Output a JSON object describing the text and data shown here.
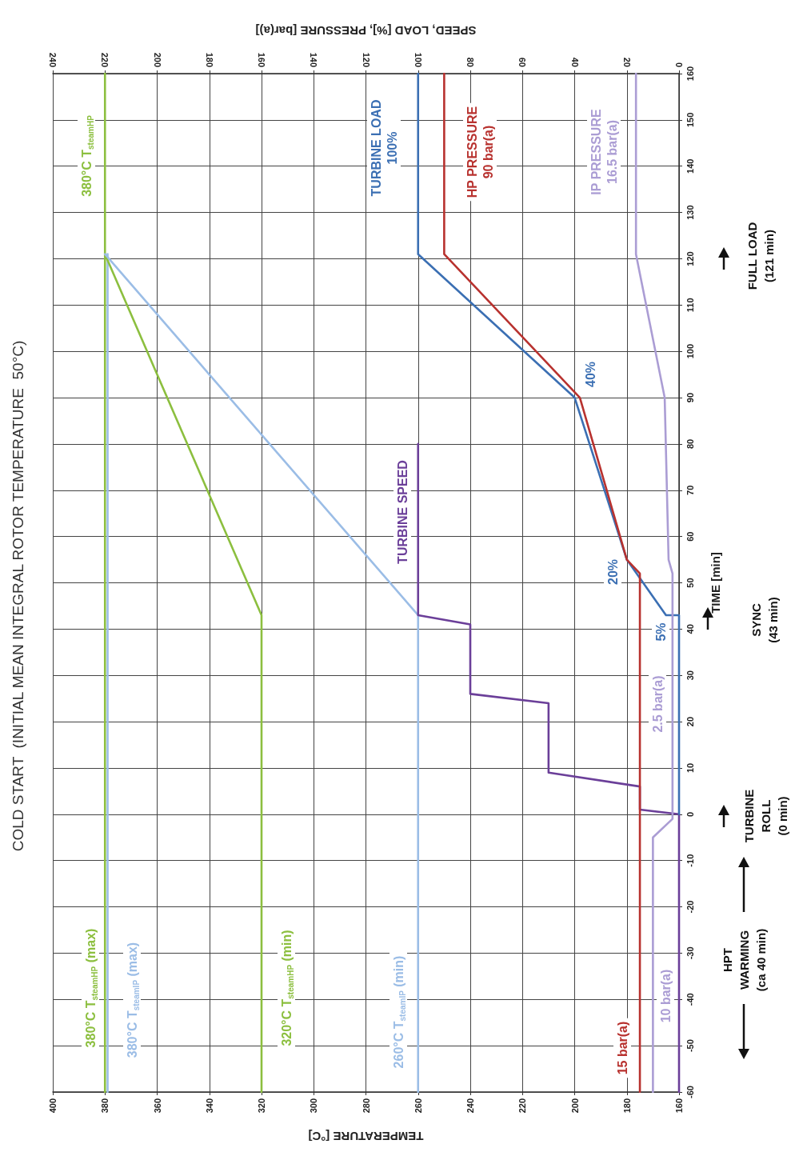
{
  "chart_data": {
    "type": "line",
    "title": "COLD START  (INITIAL MEAN INTEGRAL ROTOR TEMPERATURE  50°C)",
    "xlabel": "TEMPERATURE [°C]",
    "x2label": "SPEED, LOAD [%], PRESSURE [bar(a)]",
    "ylabel": "TIME [min]",
    "xlim": [
      400,
      160
    ],
    "xticks": [
      400,
      380,
      360,
      340,
      320,
      300,
      280,
      260,
      240,
      220,
      200,
      180,
      160
    ],
    "x2lim": [
      240,
      0
    ],
    "x2ticks": [
      240,
      220,
      200,
      180,
      160,
      140,
      120,
      100,
      80,
      60,
      40,
      20,
      0
    ],
    "ylim": [
      -60,
      160
    ],
    "yticks": [
      -60,
      -50,
      -40,
      -30,
      -20,
      -10,
      0,
      10,
      20,
      30,
      40,
      50,
      60,
      70,
      80,
      90,
      100,
      110,
      120,
      130,
      140,
      150,
      160
    ],
    "grid": true,
    "marker": "none",
    "line_style": "solid",
    "series": [
      {
        "color": "#8cbf3f",
        "x": [
          380,
          380
        ],
        "values": [
          -60,
          160
        ]
      },
      {
        "color": "#9bbde6",
        "x": [
          379,
          379
        ],
        "values": [
          -60,
          121
        ]
      },
      {
        "color": "#8cbf3f",
        "x": [
          320,
          320,
          380
        ],
        "values": [
          -60,
          43,
          121
        ]
      },
      {
        "color": "#9bbde6",
        "x": [
          260,
          260,
          380
        ],
        "values": [
          -60,
          43,
          121
        ]
      },
      {
        "color": "#6b3f99",
        "axis": "x2",
        "x": [
          0,
          0,
          15,
          15,
          50,
          50,
          80,
          80,
          100,
          100
        ],
        "values": [
          -60,
          0,
          1,
          6,
          9,
          24,
          26,
          41,
          43,
          80
        ]
      },
      {
        "color": "#3b6fb3",
        "axis": "x2",
        "x": [
          0,
          0,
          5,
          20,
          40,
          100,
          100
        ],
        "values": [
          0,
          43,
          43,
          55,
          90,
          121,
          160
        ]
      },
      {
        "color": "#b8322f",
        "axis": "x2",
        "x": [
          15,
          15,
          20,
          38,
          90,
          90
        ],
        "values": [
          -60,
          52,
          55,
          90,
          121,
          160
        ]
      },
      {
        "color": "#ab9dd4",
        "axis": "x2",
        "x": [
          10,
          10,
          2.5,
          2.5,
          4,
          5.5,
          16.5,
          16.5
        ],
        "values": [
          -60,
          -5,
          -1,
          52,
          55,
          90,
          121,
          160
        ]
      }
    ],
    "annotations": [
      "380°C T$_{steamHP}$",
      "TURBINE LOAD\n100%",
      "HP PRESSURE\n90 bar(a)",
      "IP PRESSURE\n16.5 bar(a)",
      "40%",
      "TURBINE SPEED",
      "20%",
      "5%",
      "2.5 bar(a)",
      "10 bar(a)",
      "15 bar(a)",
      "380°C T$_{steamHP}$ (max)",
      "380°C T$_{steamIP}$ (max)",
      "320°C T$_{steamHP}$ (min)",
      "260°C T$_{steamIP}$ (min)",
      "FULL LOAD\n(121 min)",
      "SYNC\n(43 min)",
      "TURBINE\nROLL\n(0 min)",
      "HPT\nWARMING\n(ca 40 min)"
    ]
  }
}
